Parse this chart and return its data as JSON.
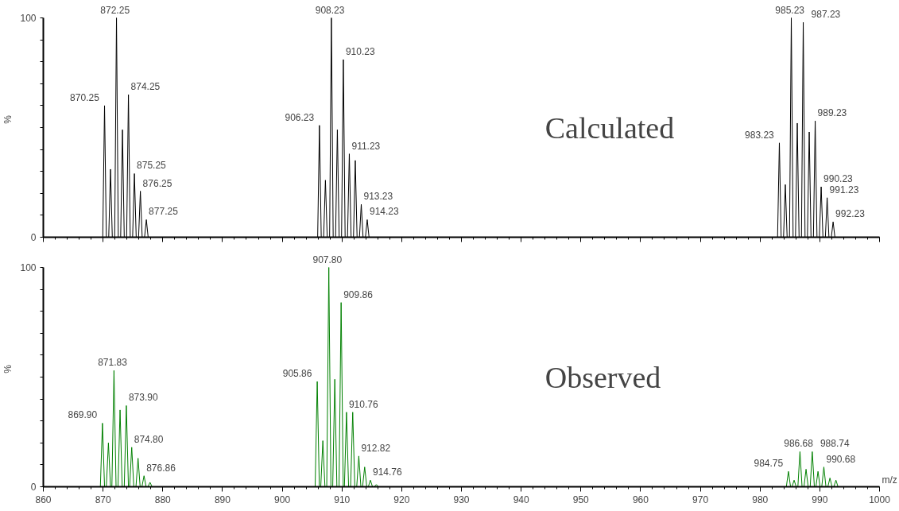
{
  "chart_data": [
    {
      "type": "line",
      "title": "Calculated",
      "ylabel": "%",
      "xlim": [
        860,
        1000
      ],
      "ylim": [
        0,
        100
      ],
      "tick_labels": "y",
      "xticks": [
        860,
        870,
        880,
        890,
        900,
        910,
        920,
        930,
        940,
        950,
        960,
        970,
        980,
        990,
        1000
      ],
      "yticks": [
        0,
        {
          "value": 10,
          "label": null
        },
        {
          "value": 20,
          "label": null
        },
        {
          "value": 30,
          "label": null
        },
        {
          "value": 40,
          "label": null
        },
        {
          "value": 50,
          "label": null
        },
        {
          "value": 60,
          "label": null
        },
        {
          "value": 70,
          "label": null
        },
        {
          "value": 80,
          "label": null
        },
        {
          "value": 90,
          "label": null
        },
        100
      ],
      "series": [
        {
          "color": "#000000",
          "x": [
            860,
            869.95,
            870.25,
            870.55,
            870.95,
            871.25,
            871.55,
            871.95,
            872.25,
            872.55,
            872.95,
            873.25,
            873.55,
            873.95,
            874.25,
            874.55,
            874.95,
            875.25,
            875.55,
            875.95,
            876.25,
            876.55,
            876.95,
            877.25,
            877.55,
            905.93,
            906.23,
            906.53,
            906.93,
            907.23,
            907.53,
            907.93,
            908.23,
            908.53,
            908.93,
            909.23,
            909.53,
            909.93,
            910.23,
            910.53,
            910.93,
            911.23,
            911.53,
            911.93,
            912.23,
            912.53,
            912.93,
            913.23,
            913.53,
            913.93,
            914.23,
            914.53,
            982.93,
            983.23,
            983.53,
            983.93,
            984.23,
            984.53,
            984.93,
            985.23,
            985.53,
            985.93,
            986.23,
            986.53,
            986.93,
            987.23,
            987.53,
            987.93,
            988.23,
            988.53,
            988.93,
            989.23,
            989.53,
            989.93,
            990.23,
            990.53,
            990.93,
            991.23,
            991.53,
            991.93,
            992.23,
            992.53,
            1000
          ],
          "values": [
            0,
            0,
            60,
            0,
            0,
            31,
            0,
            0,
            100,
            0,
            0,
            49,
            0,
            0,
            65,
            0,
            0,
            29,
            0,
            0,
            21,
            0,
            0,
            8,
            0,
            0,
            51,
            0,
            0,
            26,
            0,
            0,
            100,
            0,
            0,
            49,
            0,
            0,
            81,
            0,
            0,
            38,
            0,
            0,
            35,
            0,
            0,
            15,
            0,
            0,
            8,
            0,
            0,
            43,
            0,
            0,
            24,
            0,
            0,
            100,
            0,
            0,
            52,
            0,
            0,
            98,
            0,
            0,
            48,
            0,
            0,
            53,
            0,
            0,
            23,
            0,
            0,
            18,
            0,
            0,
            7,
            0,
            0
          ]
        }
      ],
      "annotations": [
        {
          "text": "870.25",
          "x": 870.25,
          "y": 60
        },
        {
          "text": "872.25",
          "x": 872.25,
          "y": 100
        },
        {
          "text": "874.25",
          "x": 874.25,
          "y": 65
        },
        {
          "text": "875.25",
          "x": 875.25,
          "y": 29
        },
        {
          "text": "876.25",
          "x": 876.25,
          "y": 21
        },
        {
          "text": "877.25",
          "x": 877.25,
          "y": 8
        },
        {
          "text": "906.23",
          "x": 906.23,
          "y": 51
        },
        {
          "text": "908.23",
          "x": 908.23,
          "y": 100
        },
        {
          "text": "910.23",
          "x": 910.23,
          "y": 81
        },
        {
          "text": "911.23",
          "x": 911.23,
          "y": 38
        },
        {
          "text": "913.23",
          "x": 913.23,
          "y": 15
        },
        {
          "text": "914.23",
          "x": 914.23,
          "y": 8
        },
        {
          "text": "983.23",
          "x": 983.23,
          "y": 43
        },
        {
          "text": "985.23",
          "x": 985.23,
          "y": 100
        },
        {
          "text": "987.23",
          "x": 987.23,
          "y": 98
        },
        {
          "text": "989.23",
          "x": 989.23,
          "y": 53
        },
        {
          "text": "990.23",
          "x": 990.23,
          "y": 23
        },
        {
          "text": "991.23",
          "x": 991.23,
          "y": 18
        },
        {
          "text": "992.23",
          "x": 992.23,
          "y": 7
        }
      ]
    },
    {
      "type": "line",
      "title": "Observed",
      "xlabel": "m/z",
      "ylabel": "%",
      "xlim": [
        860,
        1000
      ],
      "ylim": [
        0,
        100
      ],
      "xticks": [
        860,
        870,
        880,
        890,
        900,
        910,
        920,
        930,
        940,
        950,
        960,
        970,
        980,
        990,
        1000
      ],
      "yticks": [
        0,
        {
          "value": 10,
          "label": null
        },
        {
          "value": 20,
          "label": null
        },
        {
          "value": 30,
          "label": null
        },
        {
          "value": 40,
          "label": null
        },
        {
          "value": 50,
          "label": null
        },
        {
          "value": 60,
          "label": null
        },
        {
          "value": 70,
          "label": null
        },
        {
          "value": 80,
          "label": null
        },
        {
          "value": 90,
          "label": null
        },
        100
      ],
      "series": [
        {
          "color": "#008000",
          "x": [
            860,
            869.55,
            869.9,
            870.25,
            870.55,
            870.9,
            871.25,
            871.48,
            871.83,
            872.18,
            872.5,
            872.85,
            873.2,
            873.55,
            873.9,
            874.25,
            874.45,
            874.8,
            875.15,
            875.51,
            875.86,
            876.21,
            876.51,
            876.86,
            877.21,
            877.51,
            877.86,
            878.21,
            905.51,
            905.86,
            906.21,
            906.45,
            906.8,
            907.15,
            907.45,
            907.8,
            908.15,
            908.45,
            908.8,
            909.15,
            909.51,
            909.86,
            910.21,
            910.41,
            910.76,
            911.11,
            911.45,
            911.8,
            912.15,
            912.47,
            912.82,
            913.17,
            913.45,
            913.8,
            914.15,
            914.41,
            914.76,
            915.11,
            915.41,
            915.76,
            916.11,
            984.4,
            984.75,
            985.1,
            985.35,
            985.7,
            986.05,
            986.33,
            986.68,
            987.03,
            987.35,
            987.7,
            988.05,
            988.39,
            988.74,
            989.09,
            989.35,
            989.7,
            990.05,
            990.33,
            990.68,
            991.03,
            991.35,
            991.7,
            992.05,
            992.35,
            992.7,
            993.05,
            1000
          ],
          "values": [
            0,
            0,
            29,
            0,
            0,
            20,
            0,
            0,
            53,
            0,
            0,
            35,
            0,
            0,
            37,
            0,
            0,
            18,
            0,
            0,
            13,
            0,
            0,
            5,
            0,
            0,
            2,
            0,
            0,
            48,
            0,
            0,
            21,
            0,
            0,
            100,
            0,
            0,
            49,
            0,
            0,
            84,
            0,
            0,
            34,
            0,
            0,
            34,
            0,
            0,
            14,
            0,
            0,
            9,
            0,
            0,
            3,
            0,
            0,
            1,
            0,
            0,
            7,
            0,
            0,
            3,
            0,
            0,
            16,
            0,
            0,
            8,
            0,
            0,
            16,
            0,
            0,
            7,
            0,
            0,
            9,
            0,
            0,
            4,
            0,
            0,
            3,
            0,
            0
          ]
        }
      ],
      "annotations": [
        {
          "text": "869.90",
          "x": 869.9,
          "y": 29
        },
        {
          "text": "871.83",
          "x": 871.83,
          "y": 53
        },
        {
          "text": "873.90",
          "x": 873.9,
          "y": 37
        },
        {
          "text": "874.80",
          "x": 874.8,
          "y": 18
        },
        {
          "text": "876.86",
          "x": 876.86,
          "y": 5
        },
        {
          "text": "905.86",
          "x": 905.86,
          "y": 48
        },
        {
          "text": "907.80",
          "x": 907.8,
          "y": 100
        },
        {
          "text": "909.86",
          "x": 909.86,
          "y": 84
        },
        {
          "text": "910.76",
          "x": 910.76,
          "y": 34
        },
        {
          "text": "912.82",
          "x": 912.82,
          "y": 14
        },
        {
          "text": "914.76",
          "x": 914.76,
          "y": 3
        },
        {
          "text": "984.75",
          "x": 984.75,
          "y": 7
        },
        {
          "text": "986.68",
          "x": 986.68,
          "y": 16
        },
        {
          "text": "988.74",
          "x": 988.74,
          "y": 16
        },
        {
          "text": "990.68",
          "x": 990.68,
          "y": 9
        }
      ]
    }
  ]
}
